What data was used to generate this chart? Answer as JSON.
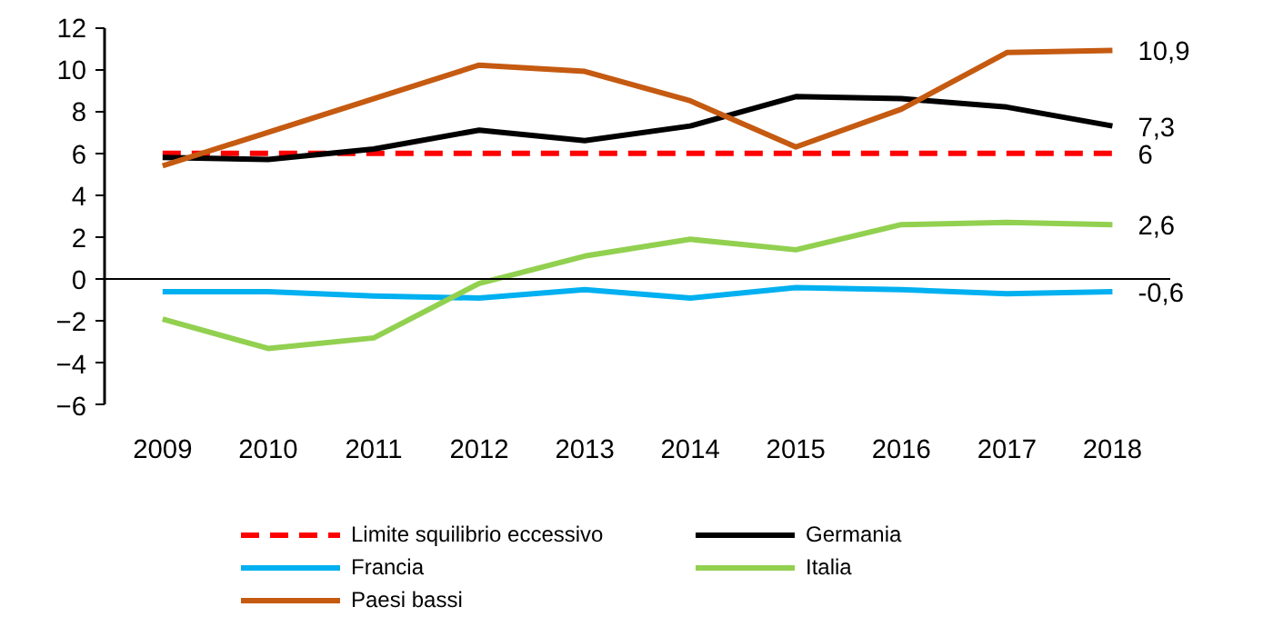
{
  "chart_data": {
    "type": "line",
    "categories": [
      "2009",
      "2010",
      "2011",
      "2012",
      "2013",
      "2014",
      "2015",
      "2016",
      "2017",
      "2018"
    ],
    "series": [
      {
        "name": "Limite squilibrio eccessivo",
        "color": "#ff0000",
        "line_style": "dashed",
        "values": [
          6,
          6,
          6,
          6,
          6,
          6,
          6,
          6,
          6,
          6
        ]
      },
      {
        "name": "Germania",
        "color": "#000000",
        "values": [
          5.8,
          5.7,
          6.2,
          7.1,
          6.6,
          7.3,
          8.7,
          8.6,
          8.2,
          7.3
        ]
      },
      {
        "name": "Francia",
        "color": "#00b0f0",
        "values": [
          -0.6,
          -0.6,
          -0.8,
          -0.9,
          -0.5,
          -0.9,
          -0.4,
          -0.5,
          -0.7,
          -0.6
        ]
      },
      {
        "name": "Italia",
        "color": "#92d050",
        "values": [
          -1.9,
          -3.3,
          -2.8,
          -0.2,
          1.1,
          1.9,
          1.4,
          2.6,
          2.7,
          2.6
        ]
      },
      {
        "name": "Paesi bassi",
        "color": "#c55a11",
        "values": [
          5.4,
          7.0,
          8.6,
          10.2,
          9.9,
          8.5,
          6.3,
          8.1,
          10.8,
          10.9
        ]
      }
    ],
    "ylim": [
      -6,
      12
    ],
    "yticks": [
      -6,
      -4,
      -2,
      0,
      2,
      4,
      6,
      8,
      10,
      12
    ],
    "grid": false,
    "legend": "bottom",
    "marker": "none",
    "line_style": "solid",
    "annotations": [
      {
        "text": "10,9",
        "x": "2018",
        "y": 10.9
      },
      {
        "text": "7,3",
        "x": "2018",
        "y": 7.3
      },
      {
        "text": "6",
        "x": "2018",
        "y": 6
      },
      {
        "text": "2,6",
        "x": "2018",
        "y": 2.6
      },
      {
        "text": "-0,6",
        "x": "2018",
        "y": -0.6
      }
    ]
  }
}
